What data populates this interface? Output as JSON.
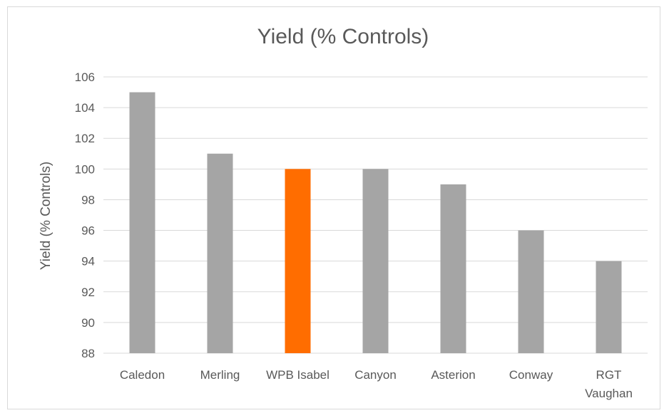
{
  "chart_data": {
    "type": "bar",
    "title": "Yield (% Controls)",
    "xlabel": "",
    "ylabel": "Yield (% Controls)",
    "categories": [
      "Caledon",
      "Merling",
      "WPB Isabel",
      "Canyon",
      "Asterion",
      "Conway",
      "RGT Vaughan"
    ],
    "category_lines": [
      [
        "Caledon"
      ],
      [
        "Merling"
      ],
      [
        "WPB Isabel"
      ],
      [
        "Canyon"
      ],
      [
        "Asterion"
      ],
      [
        "Conway"
      ],
      [
        "RGT",
        "Vaughan"
      ]
    ],
    "values": [
      105,
      101,
      100,
      100,
      99,
      96,
      94
    ],
    "ylim": [
      88,
      106
    ],
    "yticks": [
      88,
      90,
      92,
      94,
      96,
      98,
      100,
      102,
      104,
      106
    ],
    "grid": true,
    "legend": "none",
    "colors": {
      "default": "#a5a5a5",
      "highlight": "#ff6d00",
      "grid": "#d9d9d9",
      "text": "#595959"
    },
    "highlight_category": "WPB Isabel"
  }
}
